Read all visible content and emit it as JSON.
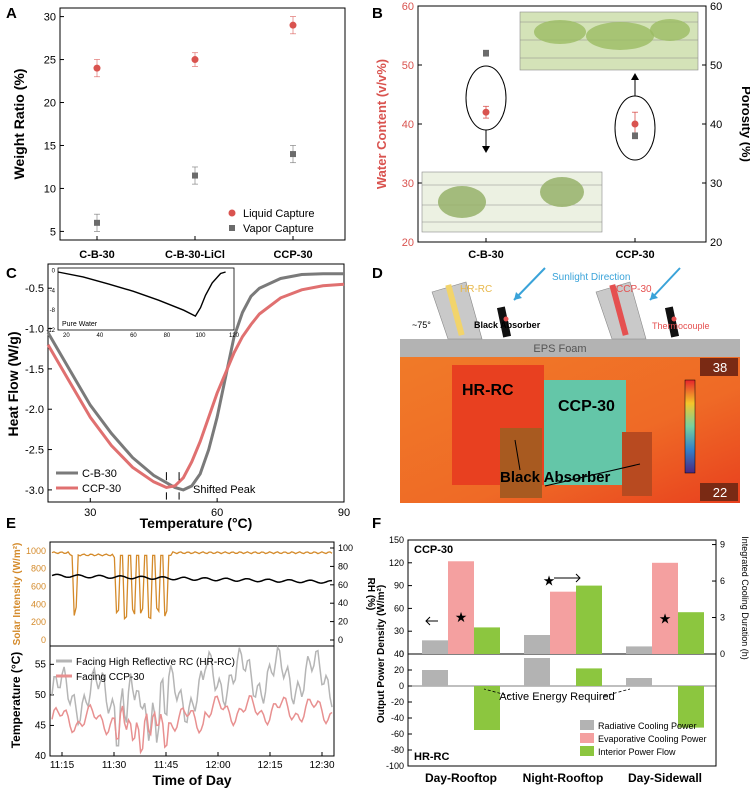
{
  "chart_data": [
    {
      "panel": "A",
      "type": "scatter",
      "ylabel": "Weight Ratio (%)",
      "ylim": [
        4,
        31
      ],
      "yticks": [
        5,
        10,
        15,
        20,
        25,
        30
      ],
      "categories": [
        "C-B-30",
        "C-B-30-LiCl",
        "CCP-30"
      ],
      "series": [
        {
          "name": "Liquid Capture",
          "color": "#d9534f",
          "values": [
            24,
            25,
            29
          ],
          "errors": [
            1.0,
            0.8,
            1.0
          ]
        },
        {
          "name": "Vapor Capture",
          "color": "#6b6b6b",
          "values": [
            6,
            11.5,
            14
          ],
          "errors": [
            1.0,
            1.0,
            1.0
          ]
        }
      ]
    },
    {
      "panel": "B",
      "type": "scatter",
      "ylabel_left": "Water Content (v/v%)",
      "ylabel_right": "Porosity (%)",
      "ylim_left": [
        20,
        60
      ],
      "yticks_left": [
        20,
        30,
        40,
        50,
        60
      ],
      "ylim_right": [
        20,
        60
      ],
      "yticks_right": [
        20,
        30,
        40,
        50,
        60
      ],
      "categories": [
        "C-B-30",
        "CCP-30"
      ],
      "series": [
        {
          "name": "Water Content",
          "axis": "left",
          "color": "#d9534f",
          "values": [
            42,
            40
          ],
          "errors": [
            1.0,
            2.0
          ]
        },
        {
          "name": "Porosity",
          "axis": "right",
          "color": "#6b6b6b",
          "values": [
            52,
            38
          ],
          "errors": [
            0.5,
            0.5
          ]
        }
      ]
    },
    {
      "panel": "C",
      "type": "line",
      "xlabel": "Temperature (°C)",
      "ylabel": "Heat Flow (W/g)",
      "xlim": [
        20,
        90
      ],
      "xticks": [
        30,
        60,
        90
      ],
      "ylim": [
        -3.15,
        -0.2
      ],
      "yticks": [
        -0.5,
        -1.0,
        -1.5,
        -2.0,
        -2.5,
        -3.0
      ],
      "series": [
        {
          "name": "C-B-30",
          "color": "#7a7a7a",
          "x": [
            20,
            25,
            30,
            35,
            40,
            45,
            50,
            52,
            54,
            56,
            58,
            60,
            62,
            64,
            66,
            68,
            70,
            75,
            80,
            85,
            90
          ],
          "y": [
            -1.05,
            -1.5,
            -1.95,
            -2.3,
            -2.6,
            -2.82,
            -2.97,
            -3.0,
            -2.95,
            -2.8,
            -2.5,
            -2.1,
            -1.6,
            -1.1,
            -0.8,
            -0.6,
            -0.5,
            -0.38,
            -0.33,
            -0.32,
            -0.32
          ]
        },
        {
          "name": "CCP-30",
          "color": "#e07070",
          "x": [
            20,
            25,
            30,
            35,
            40,
            45,
            48,
            50,
            52,
            54,
            56,
            58,
            60,
            62,
            64,
            66,
            68,
            70,
            75,
            80,
            85,
            90
          ],
          "y": [
            -1.2,
            -1.65,
            -2.1,
            -2.45,
            -2.72,
            -2.9,
            -2.97,
            -2.95,
            -2.85,
            -2.65,
            -2.4,
            -2.1,
            -1.8,
            -1.55,
            -1.3,
            -1.1,
            -0.95,
            -0.82,
            -0.62,
            -0.52,
            -0.47,
            -0.45
          ]
        }
      ],
      "annotation": "Shifted Peak",
      "inset": {
        "label": "Pure Water",
        "xlim": [
          15,
          120
        ],
        "xticks": [
          20,
          40,
          60,
          80,
          100,
          120
        ],
        "ylim": [
          -12,
          0.5
        ],
        "yticks": [
          0,
          -4,
          -8,
          -12
        ],
        "x": [
          15,
          30,
          45,
          60,
          75,
          90,
          97,
          100,
          103,
          107,
          112,
          115
        ],
        "y": [
          -0.3,
          -1.3,
          -2.7,
          -4.2,
          -6.0,
          -8.0,
          -9.2,
          -7.5,
          -5.0,
          -2.5,
          -0.6,
          -0.3
        ]
      }
    },
    {
      "panel": "E",
      "type": "line",
      "xlabel": "Time of Day",
      "xticks": [
        "11:15",
        "11:30",
        "11:45",
        "12:00",
        "12:15",
        "12:30"
      ],
      "top": {
        "ylabel_left": "Solar Intensity (W/m²)",
        "ylabel_right": "RH (%)",
        "yticks_left": [
          0,
          200,
          400,
          600,
          800,
          1000
        ],
        "yticks_right": [
          0,
          20,
          40,
          60,
          80,
          100
        ],
        "series": [
          "Solar Intensity",
          "RH"
        ]
      },
      "bottom": {
        "ylabel": "Temperature (°C)",
        "ylim": [
          40,
          58
        ],
        "yticks": [
          40,
          45,
          50,
          55
        ],
        "series": [
          {
            "name": "Facing High Reflective RC (HR-RC)",
            "color": "#b5b5b5"
          },
          {
            "name": "Facing CCP-30",
            "color": "#e89090"
          }
        ]
      }
    },
    {
      "panel": "F",
      "type": "bar",
      "categories": [
        "Day-Rooftop",
        "Night-Rooftop",
        "Day-Sidewall"
      ],
      "ylabel_left": "Output Power Density (W/m²)",
      "ylabel_right": "Integrated Cooling Duration (h)",
      "top_label": "CCP-30",
      "bottom_label": "HR-RC",
      "top": {
        "ylim": [
          0,
          150
        ],
        "yticks": [
          0,
          30,
          60,
          90,
          120,
          150
        ],
        "ylim_right": [
          0,
          9.375
        ],
        "yticks_right": [
          0,
          3,
          6,
          9
        ],
        "series": [
          {
            "name": "Radiative Cooling Power",
            "color": "#b3b3b3",
            "values": [
              18,
              25,
              10
            ]
          },
          {
            "name": "Evaporative Cooling Power",
            "color": "#f4a0a0",
            "values": [
              122,
              82,
              120
            ]
          },
          {
            "name": "Interior Power Flow",
            "color": "#8cc63f",
            "values": [
              35,
              90,
              55
            ]
          }
        ]
      },
      "bottom": {
        "ylim": [
          -100,
          40
        ],
        "yticks": [
          40,
          20,
          0,
          -20,
          -40,
          -60,
          -80,
          -100
        ],
        "series": [
          {
            "name": "Radiative Cooling Power",
            "color": "#b3b3b3",
            "values": [
              20,
              35,
              10
            ]
          },
          {
            "name": "Interior Power Flow",
            "color": "#8cc63f",
            "values": [
              -55,
              22,
              -52
            ]
          }
        ]
      },
      "annotation": "Active Energy Required"
    }
  ],
  "panel_letters": [
    "A",
    "B",
    "C",
    "D",
    "E",
    "F"
  ],
  "diagram_D": {
    "hr_rc_label": "HR-RC",
    "ccp_label": "CCP-30",
    "sunlight": "Sunlight Direction",
    "angle": "~75°",
    "black_absorber": "Black Absorber",
    "thermocouple": "Thermocouple",
    "eps_foam": "EPS Foam",
    "thermal_hr_rc": "HR-RC",
    "thermal_ccp": "CCP-30",
    "thermal_black_absorber": "Black Absorber",
    "scale_max": "38",
    "scale_min": "22"
  }
}
